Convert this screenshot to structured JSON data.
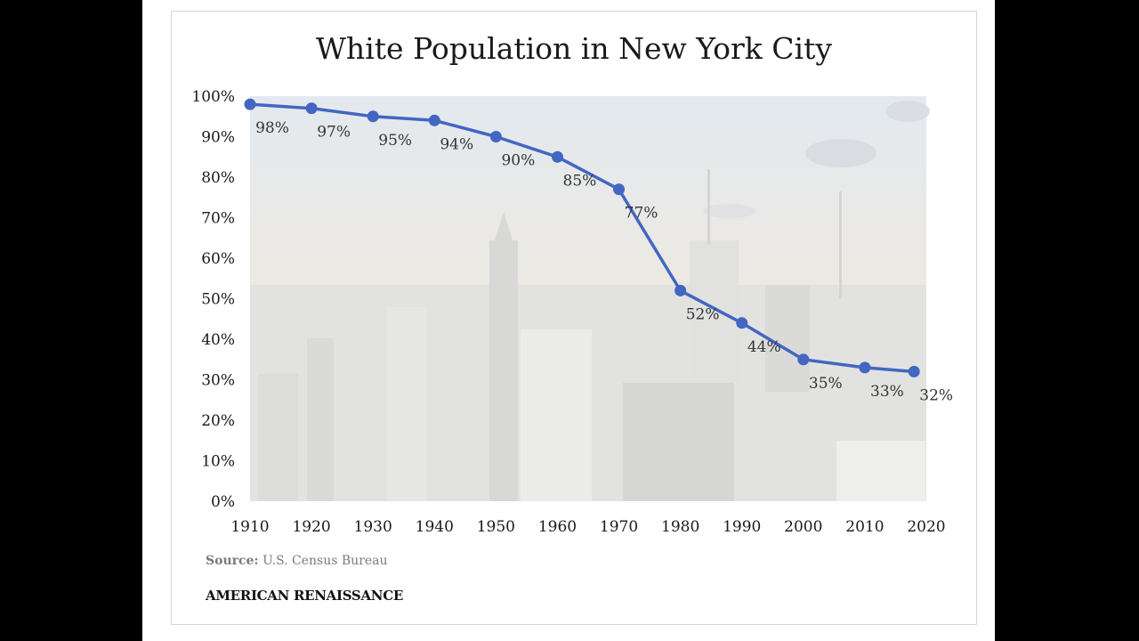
{
  "chart_data": {
    "type": "line",
    "title": "White Population in New York City",
    "xlabel": "",
    "ylabel": "",
    "x_ticks": [
      "1910",
      "1920",
      "1930",
      "1940",
      "1950",
      "1960",
      "1970",
      "1980",
      "1990",
      "2000",
      "2010",
      "2020"
    ],
    "y_ticks": [
      "0%",
      "10%",
      "20%",
      "30%",
      "40%",
      "50%",
      "60%",
      "70%",
      "80%",
      "90%",
      "100%"
    ],
    "xlim": [
      1910,
      2020
    ],
    "ylim": [
      0,
      100
    ],
    "series": [
      {
        "name": "White population share",
        "color": "#4266c2",
        "points": [
          {
            "x": 1910,
            "y": 98,
            "label": "98%"
          },
          {
            "x": 1920,
            "y": 97,
            "label": "97%"
          },
          {
            "x": 1930,
            "y": 95,
            "label": "95%"
          },
          {
            "x": 1940,
            "y": 94,
            "label": "94%"
          },
          {
            "x": 1950,
            "y": 90,
            "label": "90%"
          },
          {
            "x": 1960,
            "y": 85,
            "label": "85%"
          },
          {
            "x": 1970,
            "y": 77,
            "label": "77%"
          },
          {
            "x": 1980,
            "y": 52,
            "label": "52%"
          },
          {
            "x": 1990,
            "y": 44,
            "label": "44%"
          },
          {
            "x": 2000,
            "y": 35,
            "label": "35%"
          },
          {
            "x": 2010,
            "y": 33,
            "label": "33%"
          },
          {
            "x": 2018,
            "y": 32,
            "label": "32%"
          }
        ]
      }
    ]
  },
  "source": {
    "label": "Source:",
    "text": "U.S. Census Bureau"
  },
  "brand": "AMERICAN RENAISSANCE"
}
